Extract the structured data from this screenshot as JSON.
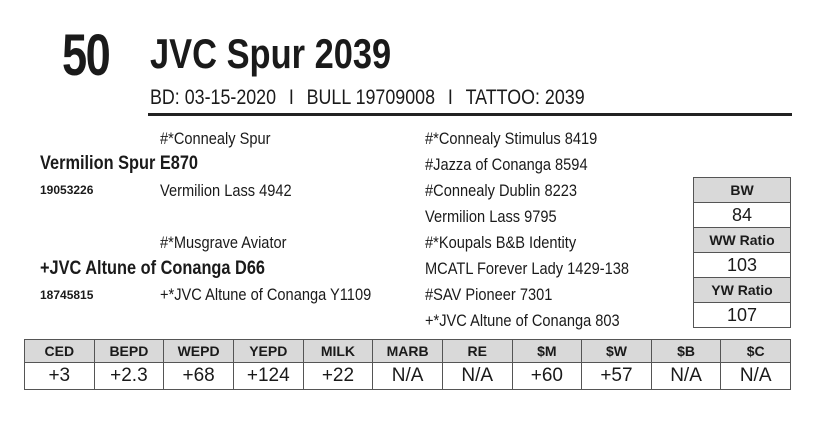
{
  "lot_number": "50",
  "animal_name": "JVC Spur 2039",
  "info_line": {
    "birth_date": "BD: 03-15-2020",
    "separator": "I",
    "registration": "BULL 19709008",
    "tattoo": "TATTOO: 2039"
  },
  "pedigree": {
    "sire_sire": "#*Connealy Spur",
    "sire": "Vermilion Spur E870",
    "sire_reg": "19053226",
    "sire_dam": "Vermilion Lass 4942",
    "dam_sire": "#*Musgrave Aviator",
    "dam": "+JVC Altune of Conanga D66",
    "dam_reg": "18745815",
    "dam_dam": "+*JVC Altune of Conanga Y1109",
    "g1": "#*Connealy Stimulus 8419",
    "g2": "#Jazza of Conanga 8594",
    "g3": "#Connealy Dublin 8223",
    "g4": "Vermilion Lass 9795",
    "g5": "#*Koupals B&B Identity",
    "g6": "MCATL Forever Lady 1429-138",
    "g7": "#SAV Pioneer 7301",
    "g8": "+*JVC Altune of Conanga 803"
  },
  "ratios": [
    {
      "label": "BW",
      "value": "84"
    },
    {
      "label": "WW Ratio",
      "value": "103"
    },
    {
      "label": "YW Ratio",
      "value": "107"
    }
  ],
  "epds": {
    "headers": [
      "CED",
      "BEPD",
      "WEPD",
      "YEPD",
      "MILK",
      "MARB",
      "RE",
      "$M",
      "$W",
      "$B",
      "$C"
    ],
    "values": [
      "+3",
      "+2.3",
      "+68",
      "+124",
      "+22",
      "N/A",
      "N/A",
      "+60",
      "+57",
      "N/A",
      "N/A"
    ]
  }
}
